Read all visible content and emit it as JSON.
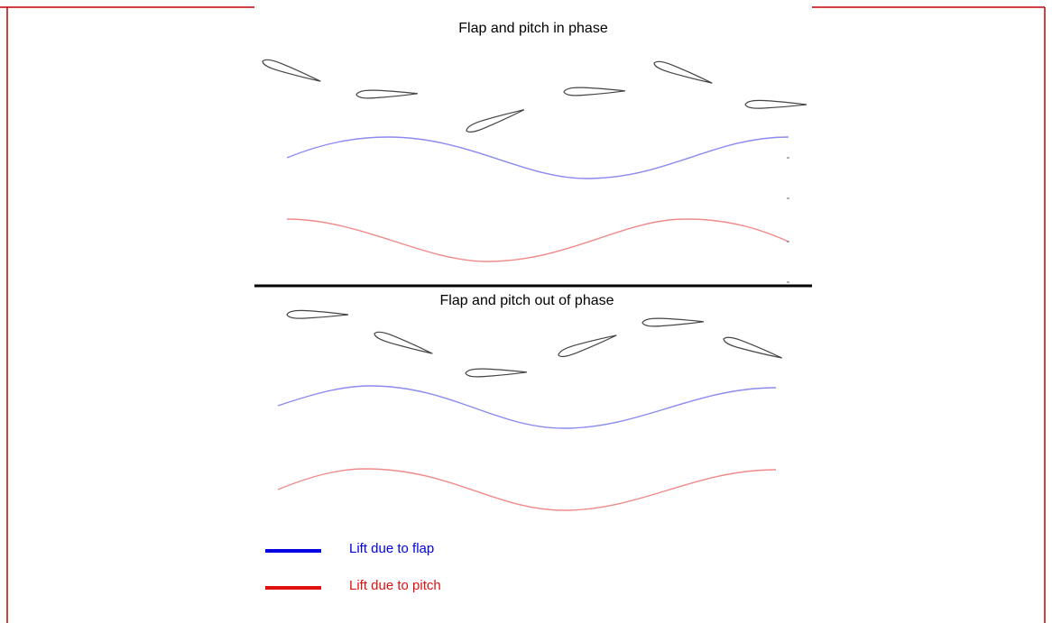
{
  "panels": [
    {
      "title": "Flap and pitch in phase"
    },
    {
      "title": "Flap and pitch out of phase"
    }
  ],
  "legend": [
    {
      "label": "Lift due to flap"
    },
    {
      "label": "Lift due to pitch"
    }
  ]
}
